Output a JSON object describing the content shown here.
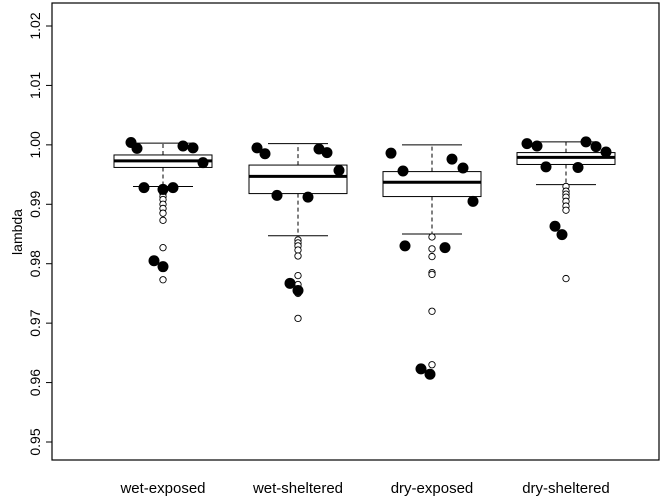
{
  "chart_data": {
    "type": "boxplot",
    "xlabel": "",
    "ylabel": "lambda",
    "ylim": [
      0.945,
      1.022
    ],
    "yticks": [
      0.95,
      0.96,
      0.97,
      0.98,
      0.99,
      1.0,
      1.01,
      1.02
    ],
    "ytick_labels": [
      "0.95",
      "0.96",
      "0.97",
      "0.98",
      "0.99",
      "1.00",
      "1.01",
      "1.02"
    ],
    "grid": false,
    "legend": "none",
    "categories": [
      "wet-exposed",
      "wet-sheltered",
      "dry-exposed",
      "dry-sheltered"
    ],
    "boxes": [
      {
        "category": "wet-exposed",
        "whisker_low": 0.993,
        "q1": 0.9962,
        "median": 0.9973,
        "q3": 0.9983,
        "whisker_high": 1.0003,
        "outliers": [
          0.9922,
          0.9918,
          0.9913,
          0.9908,
          0.99,
          0.9893,
          0.9885,
          0.9873,
          0.9827,
          0.9773
        ]
      },
      {
        "category": "wet-sheltered",
        "whisker_low": 0.9847,
        "q1": 0.9918,
        "median": 0.9947,
        "q3": 0.9966,
        "whisker_high": 1.0002,
        "outliers": [
          0.984,
          0.9835,
          0.983,
          0.9823,
          0.9813,
          0.978,
          0.9765,
          0.975,
          0.9708
        ]
      },
      {
        "category": "dry-exposed",
        "whisker_low": 0.985,
        "q1": 0.9913,
        "median": 0.9937,
        "q3": 0.9955,
        "whisker_high": 1.0,
        "outliers": [
          0.9845,
          0.9825,
          0.9812,
          0.9785,
          0.9782,
          0.972,
          0.963
        ]
      },
      {
        "category": "dry-sheltered",
        "whisker_low": 0.9933,
        "q1": 0.9967,
        "median": 0.9979,
        "q3": 0.9987,
        "whisker_high": 1.0005,
        "outliers": [
          0.993,
          0.9922,
          0.9917,
          0.9912,
          0.9905,
          0.9897,
          0.989,
          0.9775
        ]
      }
    ],
    "filled_points": [
      {
        "category": "wet-exposed",
        "dx": -0.32,
        "y": 1.0004
      },
      {
        "category": "wet-exposed",
        "dx": -0.26,
        "y": 0.9994
      },
      {
        "category": "wet-exposed",
        "dx": 0.2,
        "y": 0.9998
      },
      {
        "category": "wet-exposed",
        "dx": 0.3,
        "y": 0.9995
      },
      {
        "category": "wet-exposed",
        "dx": 0.4,
        "y": 0.997
      },
      {
        "category": "wet-exposed",
        "dx": -0.19,
        "y": 0.9928
      },
      {
        "category": "wet-exposed",
        "dx": 0.0,
        "y": 0.9925
      },
      {
        "category": "wet-exposed",
        "dx": 0.1,
        "y": 0.9928
      },
      {
        "category": "wet-exposed",
        "dx": -0.09,
        "y": 0.9805
      },
      {
        "category": "wet-exposed",
        "dx": 0.0,
        "y": 0.9795
      },
      {
        "category": "wet-sheltered",
        "dx": -0.41,
        "y": 0.9995
      },
      {
        "category": "wet-sheltered",
        "dx": -0.33,
        "y": 0.9985
      },
      {
        "category": "wet-sheltered",
        "dx": 0.21,
        "y": 0.9993
      },
      {
        "category": "wet-sheltered",
        "dx": 0.29,
        "y": 0.9987
      },
      {
        "category": "wet-sheltered",
        "dx": 0.41,
        "y": 0.9957
      },
      {
        "category": "wet-sheltered",
        "dx": -0.21,
        "y": 0.9915
      },
      {
        "category": "wet-sheltered",
        "dx": 0.1,
        "y": 0.9912
      },
      {
        "category": "wet-sheltered",
        "dx": -0.08,
        "y": 0.9767
      },
      {
        "category": "wet-sheltered",
        "dx": 0.0,
        "y": 0.9755
      },
      {
        "category": "dry-exposed",
        "dx": -0.41,
        "y": 0.9986
      },
      {
        "category": "dry-exposed",
        "dx": -0.29,
        "y": 0.9956
      },
      {
        "category": "dry-exposed",
        "dx": 0.2,
        "y": 0.9976
      },
      {
        "category": "dry-exposed",
        "dx": 0.31,
        "y": 0.9961
      },
      {
        "category": "dry-exposed",
        "dx": 0.41,
        "y": 0.9905
      },
      {
        "category": "dry-exposed",
        "dx": -0.27,
        "y": 0.983
      },
      {
        "category": "dry-exposed",
        "dx": 0.13,
        "y": 0.9827
      },
      {
        "category": "dry-exposed",
        "dx": -0.11,
        "y": 0.9623
      },
      {
        "category": "dry-exposed",
        "dx": -0.02,
        "y": 0.9614
      },
      {
        "category": "dry-sheltered",
        "dx": -0.39,
        "y": 1.0002
      },
      {
        "category": "dry-sheltered",
        "dx": -0.29,
        "y": 0.9998
      },
      {
        "category": "dry-sheltered",
        "dx": -0.2,
        "y": 0.9963
      },
      {
        "category": "dry-sheltered",
        "dx": 0.12,
        "y": 0.9962
      },
      {
        "category": "dry-sheltered",
        "dx": 0.2,
        "y": 1.0005
      },
      {
        "category": "dry-sheltered",
        "dx": 0.3,
        "y": 0.9997
      },
      {
        "category": "dry-sheltered",
        "dx": 0.4,
        "y": 0.9988
      },
      {
        "category": "dry-sheltered",
        "dx": -0.11,
        "y": 0.9863
      },
      {
        "category": "dry-sheltered",
        "dx": -0.04,
        "y": 0.9849
      }
    ]
  }
}
